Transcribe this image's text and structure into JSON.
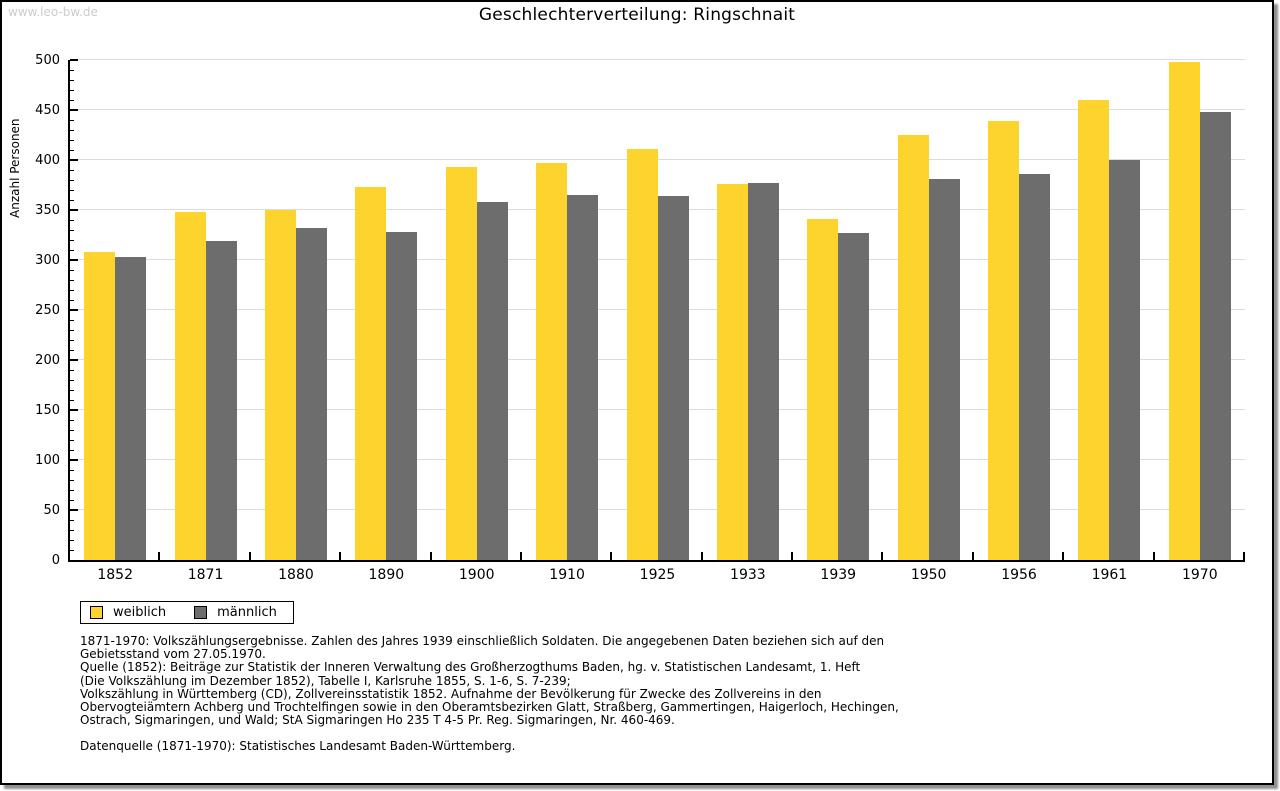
{
  "watermark": "www.leo-bw.de",
  "title": "Geschlechterverteilung: Ringschnait",
  "chart_data": {
    "type": "bar",
    "title": "Geschlechterverteilung: Ringschnait",
    "xlabel": "",
    "ylabel": "Anzahl Personen",
    "ylim": [
      0,
      500
    ],
    "ytick_step": 50,
    "minor_tick_step": 10,
    "grid": true,
    "legend_position": "bottom-left",
    "categories": [
      "1852",
      "1871",
      "1880",
      "1890",
      "1900",
      "1910",
      "1925",
      "1933",
      "1939",
      "1950",
      "1956",
      "1961",
      "1970"
    ],
    "series": [
      {
        "name": "weiblich",
        "color": "#fdd32e",
        "values": [
          308,
          348,
          350,
          373,
          393,
          397,
          411,
          376,
          341,
          425,
          439,
          460,
          498
        ]
      },
      {
        "name": "männlich",
        "color": "#6d6d6d",
        "values": [
          303,
          319,
          332,
          328,
          358,
          365,
          364,
          377,
          327,
          381,
          386,
          400,
          448
        ]
      }
    ]
  },
  "legend": {
    "items": [
      {
        "label": "weiblich",
        "color": "#fdd32e"
      },
      {
        "label": "männlich",
        "color": "#6d6d6d"
      }
    ]
  },
  "footnotes": {
    "lines": [
      "1871-1970: Volkszählungsergebnisse. Zahlen des Jahres 1939 einschließlich Soldaten. Die angegebenen Daten beziehen sich auf den",
      "Gebietsstand vom 27.05.1970.",
      "Quelle (1852): Beiträge zur Statistik der Inneren Verwaltung des Großherzogthums Baden, hg. v. Statistischen Landesamt, 1. Heft",
      "(Die Volkszählung im Dezember 1852), Tabelle I, Karlsruhe 1855, S. 1-6, S. 7-239;",
      "Volkszählung in Württemberg (CD), Zollvereinsstatistik 1852. Aufnahme der Bevölkerung für Zwecke des Zollvereins in den",
      "Obervogteiämtern Achberg und Trochtelfingen sowie in den Oberamtsbezirken Glatt, Straßberg, Gammertingen, Haigerloch, Hechingen,",
      "Ostrach, Sigmaringen, und Wald; StA Sigmaringen Ho 235 T 4-5 Pr. Reg. Sigmaringen, Nr. 460-469."
    ],
    "datasource": "Datenquelle (1871-1970): Statistisches Landesamt Baden-Württemberg."
  },
  "colors": {
    "grid": "#dcdcdc",
    "axis": "#000000",
    "watermark": "#cccccc",
    "background": "#ffffff"
  }
}
